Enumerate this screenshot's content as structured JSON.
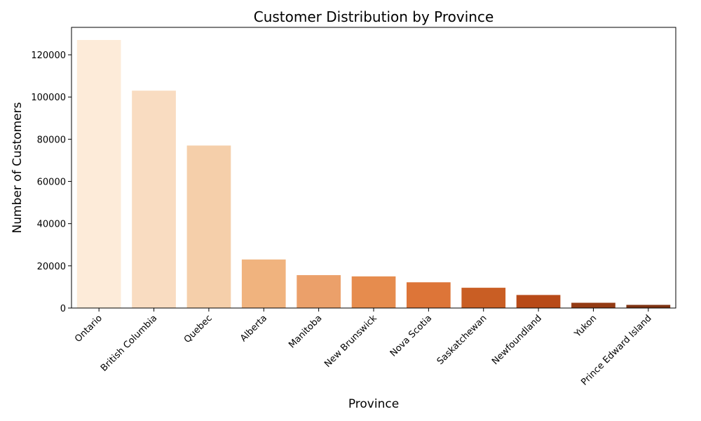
{
  "chart_data": {
    "type": "bar",
    "title": "Customer Distribution by Province",
    "xlabel": "Province",
    "ylabel": "Number of Customers",
    "categories": [
      "Ontario",
      "British Columbia",
      "Quebec",
      "Alberta",
      "Manitoba",
      "New Brunswick",
      "Nova Scotia",
      "Saskatchewan",
      "Newfoundland",
      "Yukon",
      "Prince Edward Island"
    ],
    "values": [
      127000,
      103000,
      77000,
      23000,
      15600,
      15000,
      12200,
      9600,
      6200,
      2500,
      1500
    ],
    "colors": [
      "#fdebd9",
      "#f9dcc1",
      "#f5cfaa",
      "#f0b37e",
      "#eba06a",
      "#e68c4e",
      "#dd7538",
      "#c95e24",
      "#b84a18",
      "#943b14",
      "#7d3212"
    ],
    "ylim": [
      0,
      133000
    ],
    "yticks": [
      0,
      20000,
      40000,
      60000,
      80000,
      100000,
      120000
    ],
    "grid": false,
    "legend": "none"
  }
}
